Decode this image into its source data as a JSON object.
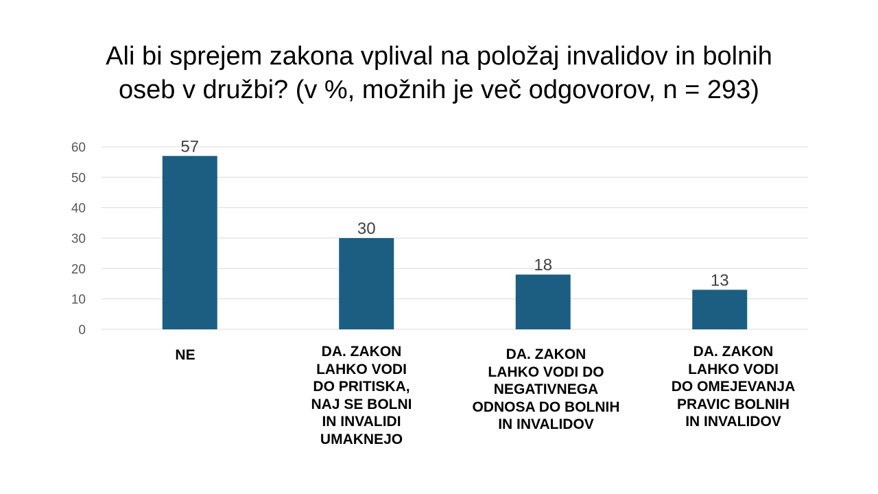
{
  "title_lines": [
    "Ali bi sprejem zakona vplival na položaj invalidov in bolnih",
    "oseb v družbi? (v %, možnih je več odgovorov, n = 293)"
  ],
  "colors": {
    "bar": "#1b5e82",
    "grid": "#d9d9d9",
    "tick": "#595959",
    "label": "#404040"
  },
  "chart_data": {
    "type": "bar",
    "title": "Ali bi sprejem zakona vplival na položaj invalidov in bolnih oseb v družbi? (v %, možnih je več odgovorov, n = 293)",
    "categories": [
      "NE",
      "DA. ZAKON\nLAHKO VODI\nDO PRITISKA,\nNAJ SE BOLNI\nIN INVALIDI\nUMAKNEJO",
      "DA. ZAKON\nLAHKO  VODI DO\nNEGATIVNEGA\nODNOSA DO BOLNIH\nIN INVALIDOV",
      "DA. ZAKON\nLAHKO VODI\nDO OMEJEVANJA\nPRAVIC BOLNIH\nIN INVALIDOV"
    ],
    "values": [
      57,
      30,
      18,
      13
    ],
    "data_labels": [
      "57",
      "30",
      "18",
      "13"
    ],
    "ylim": [
      0,
      60
    ],
    "yticks": [
      "0",
      "10",
      "20",
      "30",
      "40",
      "50",
      "60"
    ],
    "grid": true,
    "legend": "none",
    "xlabel": "",
    "ylabel": ""
  }
}
